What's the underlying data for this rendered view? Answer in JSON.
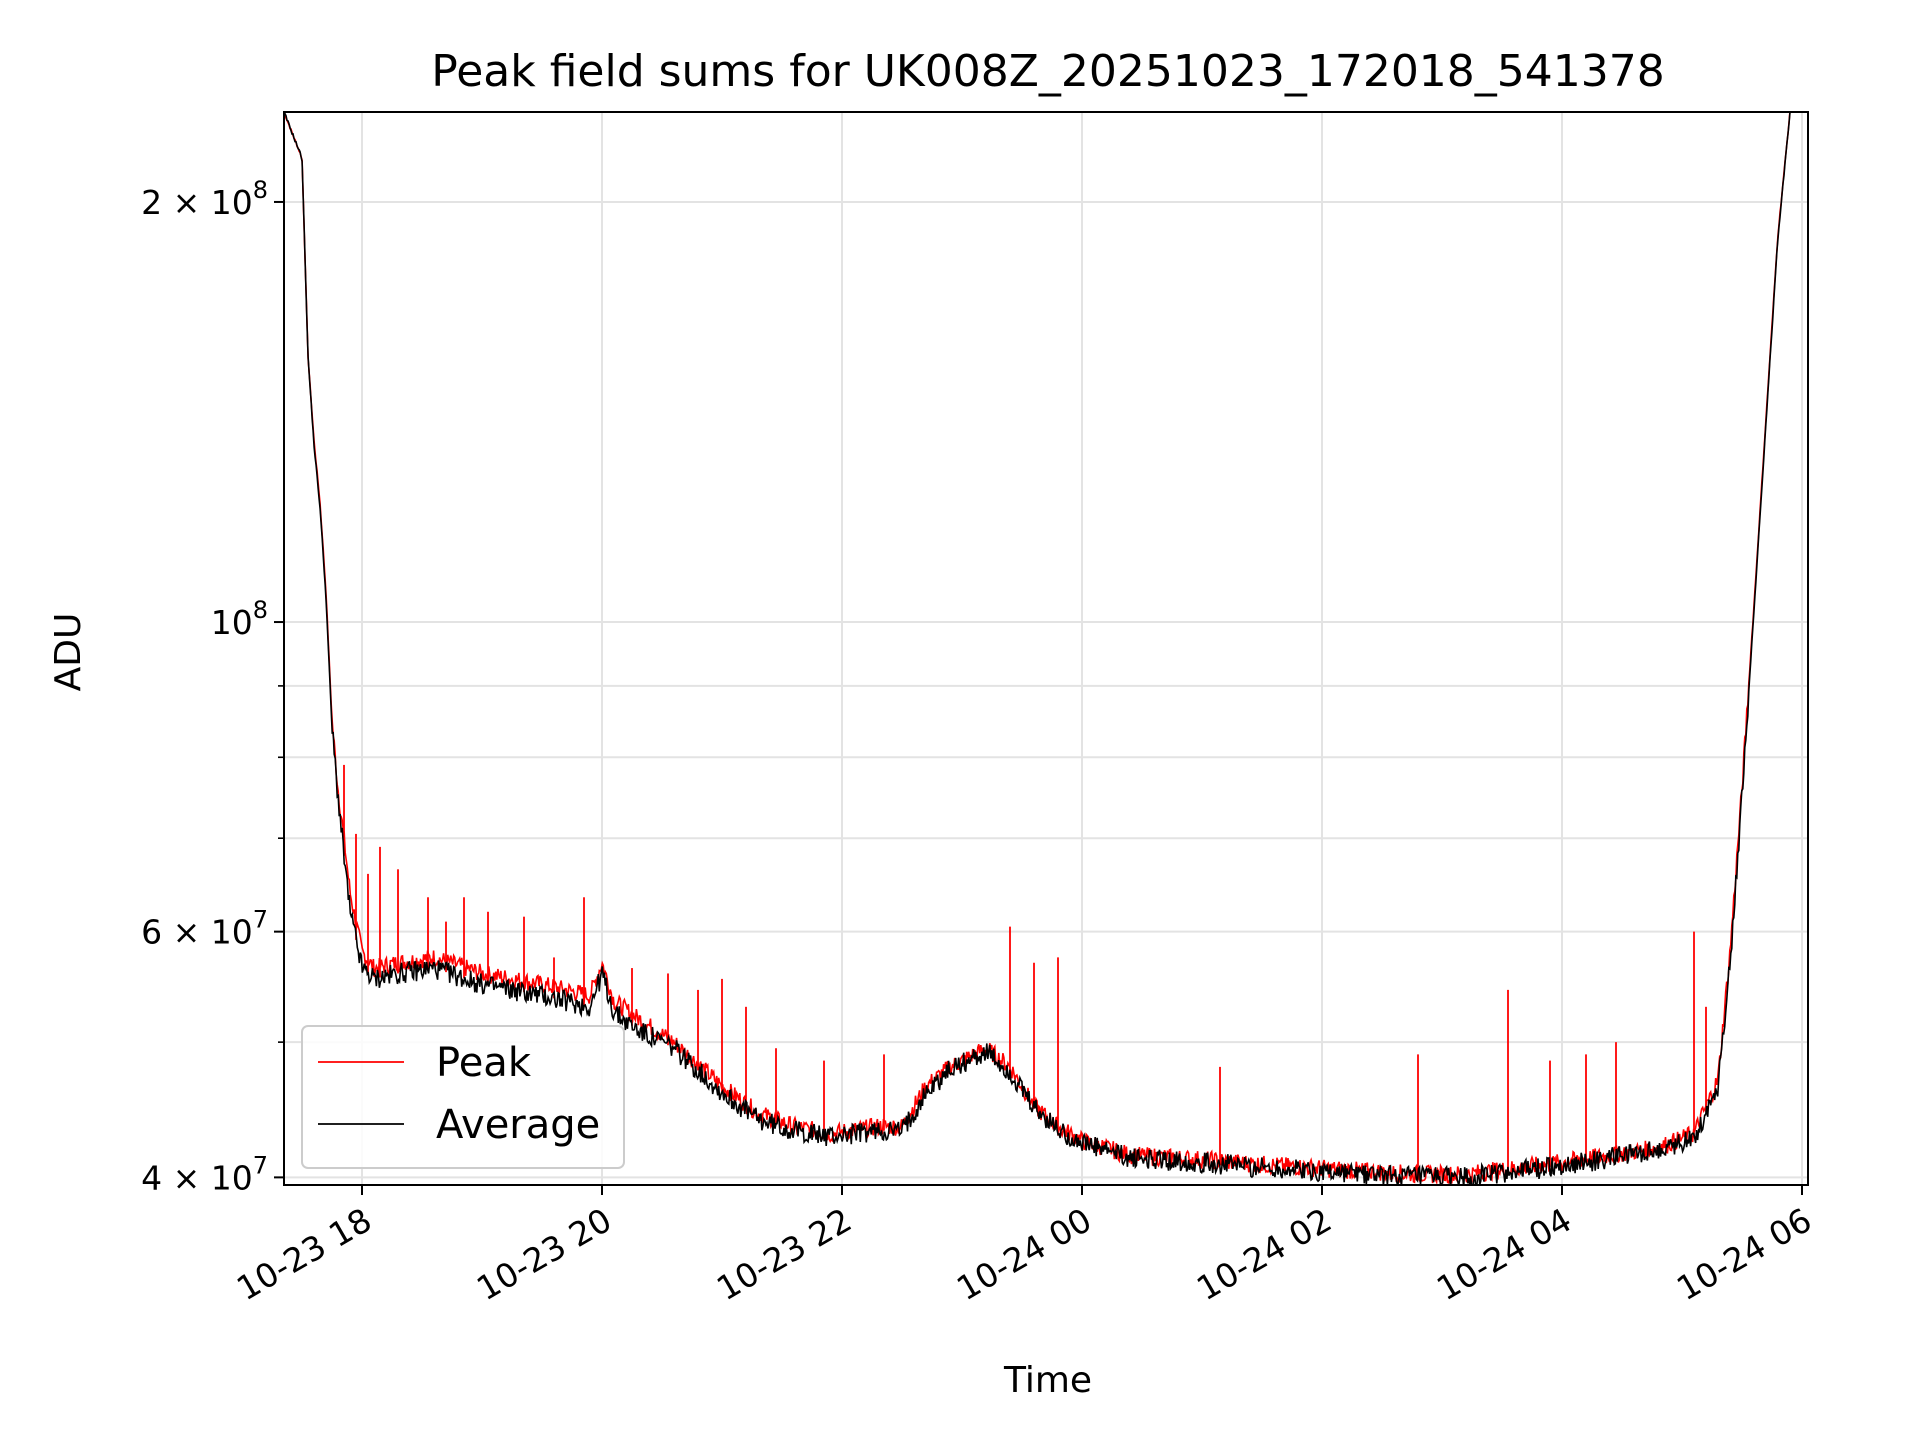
{
  "chart_data": {
    "type": "line",
    "title": "Peak field sums for UK008Z_20251023_172018_541378",
    "xlabel": "Time",
    "ylabel": "ADU",
    "yscale": "log",
    "ylim": [
      39500000,
      232000000
    ],
    "xlim_hours": [
      17.35,
      30.05
    ],
    "grid": true,
    "legend_position": "lower-left",
    "x_ticks": [
      {
        "hours": 18,
        "label": "10-23 18"
      },
      {
        "hours": 20,
        "label": "10-23 20"
      },
      {
        "hours": 22,
        "label": "10-23 22"
      },
      {
        "hours": 24,
        "label": "10-24 00"
      },
      {
        "hours": 26,
        "label": "10-24 02"
      },
      {
        "hours": 28,
        "label": "10-24 04"
      },
      {
        "hours": 30,
        "label": "10-24 06"
      }
    ],
    "y_ticks_major": [
      {
        "value": 40000000,
        "mantissa": "4",
        "exp": "7"
      },
      {
        "value": 60000000,
        "mantissa": "6",
        "exp": "7"
      },
      {
        "value": 100000000,
        "mantissa": "",
        "exp": "8"
      },
      {
        "value": 200000000,
        "mantissa": "2",
        "exp": "8"
      }
    ],
    "y_ticks_minor": [
      50000000,
      70000000,
      80000000,
      90000000
    ],
    "series": [
      {
        "name": "Peak",
        "color": "#ff0000",
        "x_hours": [
          17.35,
          17.5,
          17.55,
          17.6,
          17.65,
          17.7,
          17.75,
          17.8,
          17.85,
          17.9,
          18.0,
          18.1,
          18.3,
          18.6,
          19.0,
          19.5,
          19.9,
          20.0,
          20.1,
          20.3,
          20.6,
          21.0,
          21.3,
          21.6,
          21.9,
          22.3,
          22.5,
          22.7,
          22.9,
          23.2,
          23.4,
          23.6,
          23.8,
          24.0,
          24.4,
          25.0,
          25.6,
          26.2,
          26.8,
          27.2,
          27.6,
          28.0,
          28.4,
          28.8,
          29.1,
          29.3,
          29.4,
          29.5,
          29.6,
          29.7,
          29.8,
          29.9
        ],
        "y": [
          232000000,
          215000000,
          155000000,
          135000000,
          122000000,
          105000000,
          85000000,
          76000000,
          70000000,
          64000000,
          58000000,
          56500000,
          57000000,
          57500000,
          56000000,
          55000000,
          54000000,
          57000000,
          53500000,
          52000000,
          50000000,
          46500000,
          44500000,
          43500000,
          43000000,
          43500000,
          43500000,
          46500000,
          48000000,
          49500000,
          48000000,
          45000000,
          43500000,
          42500000,
          41500000,
          41200000,
          40800000,
          40500000,
          40200000,
          40200000,
          40600000,
          41000000,
          41500000,
          42000000,
          43000000,
          47000000,
          58000000,
          76000000,
          103000000,
          140000000,
          190000000,
          232000000
        ],
        "spikes": [
          [
            17.85,
            79000000
          ],
          [
            17.95,
            70500000
          ],
          [
            18.05,
            66000000
          ],
          [
            18.15,
            69000000
          ],
          [
            18.3,
            66500000
          ],
          [
            18.55,
            63500000
          ],
          [
            18.7,
            61000000
          ],
          [
            18.85,
            63500000
          ],
          [
            19.05,
            62000000
          ],
          [
            19.35,
            61500000
          ],
          [
            19.6,
            57500000
          ],
          [
            19.85,
            63500000
          ],
          [
            20.25,
            56500000
          ],
          [
            20.55,
            56000000
          ],
          [
            20.8,
            54500000
          ],
          [
            21.0,
            55500000
          ],
          [
            21.2,
            53000000
          ],
          [
            21.45,
            49500000
          ],
          [
            21.85,
            48500000
          ],
          [
            22.35,
            49000000
          ],
          [
            23.4,
            60500000
          ],
          [
            23.6,
            57000000
          ],
          [
            23.8,
            57500000
          ],
          [
            25.15,
            48000000
          ],
          [
            26.8,
            49000000
          ],
          [
            27.55,
            54500000
          ],
          [
            27.9,
            48500000
          ],
          [
            28.2,
            49000000
          ],
          [
            28.45,
            50000000
          ],
          [
            29.1,
            60000000
          ],
          [
            29.2,
            53000000
          ]
        ]
      },
      {
        "name": "Average",
        "color": "#000000",
        "x_hours": [
          17.35,
          17.5,
          17.55,
          17.6,
          17.65,
          17.7,
          17.75,
          17.8,
          17.85,
          17.9,
          18.0,
          18.1,
          18.3,
          18.6,
          19.0,
          19.5,
          19.9,
          20.0,
          20.1,
          20.3,
          20.6,
          21.0,
          21.3,
          21.6,
          21.9,
          22.3,
          22.5,
          22.7,
          22.9,
          23.2,
          23.4,
          23.6,
          23.8,
          24.0,
          24.4,
          25.0,
          25.6,
          26.2,
          26.8,
          27.2,
          27.6,
          28.0,
          28.4,
          28.8,
          29.1,
          29.3,
          29.4,
          29.5,
          29.6,
          29.7,
          29.8,
          29.9
        ],
        "y": [
          232000000,
          215000000,
          155000000,
          134000000,
          121000000,
          104000000,
          84000000,
          75000000,
          68000000,
          62000000,
          56500000,
          55500000,
          56000000,
          56500000,
          55000000,
          54000000,
          53000000,
          56000000,
          52500000,
          51000000,
          49500000,
          46000000,
          44000000,
          43200000,
          42800000,
          43200000,
          43200000,
          46000000,
          47800000,
          49200000,
          47500000,
          44800000,
          43300000,
          42300000,
          41300000,
          41000000,
          40600000,
          40300000,
          40000000,
          40000000,
          40400000,
          40800000,
          41300000,
          41800000,
          42700000,
          46500000,
          57000000,
          75000000,
          102000000,
          139000000,
          189000000,
          232000000
        ]
      }
    ]
  }
}
